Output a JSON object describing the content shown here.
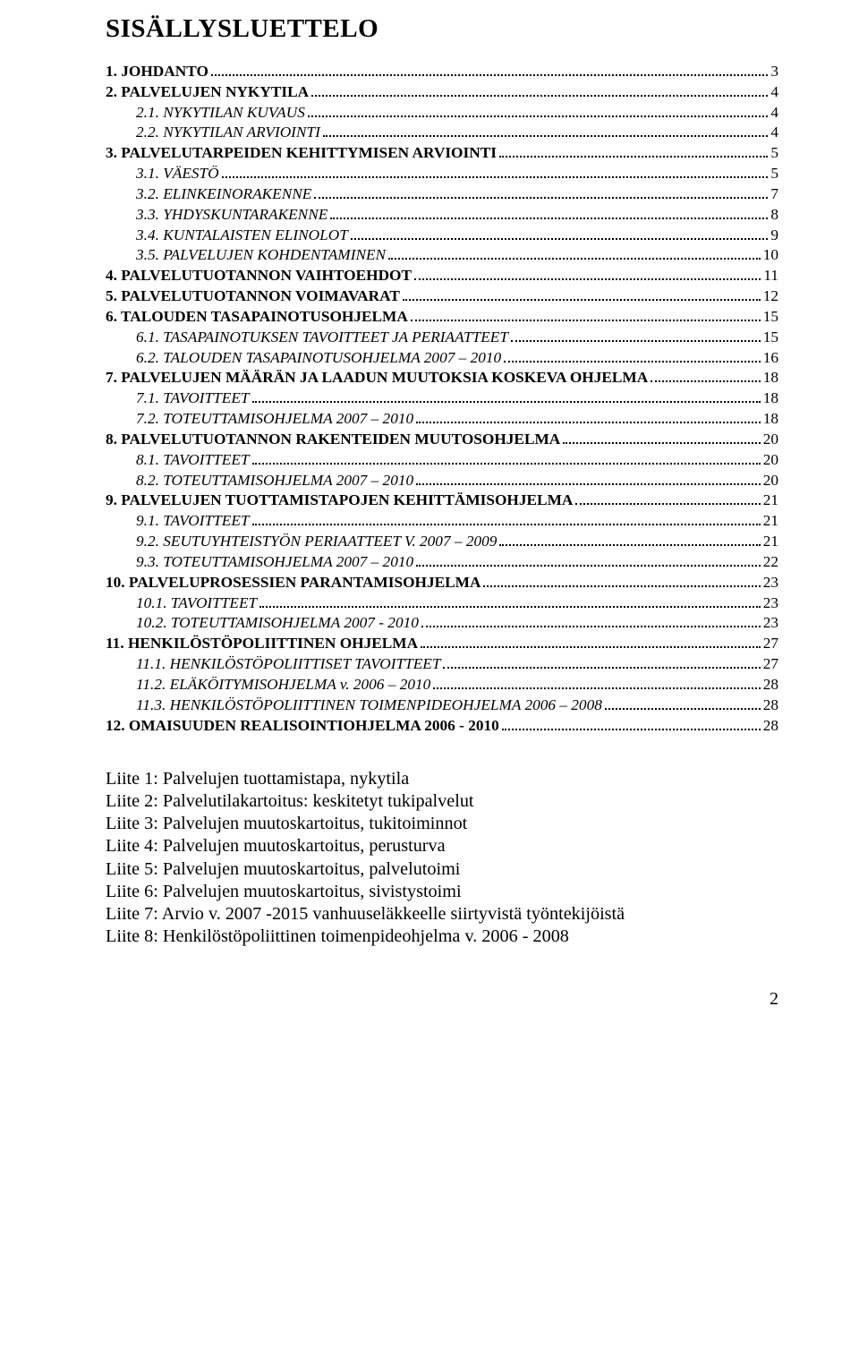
{
  "title": "SISÄLLYSLUETTELO",
  "toc": [
    {
      "lvl": 1,
      "bold": true,
      "label": "1.   JOHDANTO",
      "page": 3
    },
    {
      "lvl": 1,
      "bold": true,
      "label": "2.   PALVELUJEN NYKYTILA",
      "page": 4
    },
    {
      "lvl": 2,
      "italic": true,
      "label": "2.1.   NYKYTILAN KUVAUS",
      "page": 4
    },
    {
      "lvl": 2,
      "italic": true,
      "label": "2.2.   NYKYTILAN ARVIOINTI",
      "page": 4
    },
    {
      "lvl": 1,
      "bold": true,
      "label": "3.   PALVELUTARPEIDEN KEHITTYMISEN ARVIOINTI",
      "page": 5
    },
    {
      "lvl": 2,
      "italic": true,
      "label": "3.1.   VÄESTÖ",
      "page": 5
    },
    {
      "lvl": 2,
      "italic": true,
      "label": "3.2.   ELINKEINORAKENNE",
      "page": 7
    },
    {
      "lvl": 2,
      "italic": true,
      "label": "3.3.   YHDYSKUNTARAKENNE",
      "page": 8
    },
    {
      "lvl": 2,
      "italic": true,
      "label": "3.4.   KUNTALAISTEN ELINOLOT",
      "page": 9
    },
    {
      "lvl": 2,
      "italic": true,
      "label": "3.5.   PALVELUJEN KOHDENTAMINEN",
      "page": 10
    },
    {
      "lvl": 1,
      "bold": true,
      "label": "4.   PALVELUTUOTANNON VAIHTOEHDOT",
      "page": 11
    },
    {
      "lvl": 1,
      "bold": true,
      "label": "5.   PALVELUTUOTANNON VOIMAVARAT",
      "page": 12
    },
    {
      "lvl": 1,
      "bold": true,
      "label": "6.   TALOUDEN TASAPAINOTUSOHJELMA",
      "page": 15
    },
    {
      "lvl": 2,
      "italic": true,
      "label": "6.1.   TASAPAINOTUKSEN TAVOITTEET JA PERIAATTEET",
      "page": 15
    },
    {
      "lvl": 2,
      "italic": true,
      "label": "6.2.   TALOUDEN TASAPAINOTUSOHJELMA 2007 – 2010",
      "page": 16
    },
    {
      "lvl": 1,
      "bold": true,
      "label": "7.   PALVELUJEN MÄÄRÄN JA LAADUN MUUTOKSIA KOSKEVA OHJELMA",
      "page": 18
    },
    {
      "lvl": 2,
      "italic": true,
      "label": "7.1.   TAVOITTEET",
      "page": 18
    },
    {
      "lvl": 2,
      "italic": true,
      "label": "7.2.   TOTEUTTAMISOHJELMA 2007 – 2010",
      "page": 18
    },
    {
      "lvl": 1,
      "bold": true,
      "label": "8.   PALVELUTUOTANNON RAKENTEIDEN MUUTOSOHJELMA",
      "page": 20
    },
    {
      "lvl": 2,
      "italic": true,
      "label": "8.1.   TAVOITTEET",
      "page": 20
    },
    {
      "lvl": 2,
      "italic": true,
      "label": "8.2.   TOTEUTTAMISOHJELMA 2007 – 2010",
      "page": 20
    },
    {
      "lvl": 1,
      "bold": true,
      "label": "9.   PALVELUJEN TUOTTAMISTAPOJEN KEHITTÄMISOHJELMA",
      "page": 21
    },
    {
      "lvl": 2,
      "italic": true,
      "label": "9.1.   TAVOITTEET",
      "page": 21
    },
    {
      "lvl": 2,
      "italic": true,
      "label": "9.2.   SEUTUYHTEISTYÖN PERIAATTEET V. 2007 – 2009",
      "page": 21
    },
    {
      "lvl": 2,
      "italic": true,
      "label": "9.3.   TOTEUTTAMISOHJELMA 2007 – 2010",
      "page": 22
    },
    {
      "lvl": 1,
      "bold": true,
      "label": "10.   PALVELUPROSESSIEN PARANTAMISOHJELMA",
      "page": 23
    },
    {
      "lvl": 2,
      "italic": true,
      "label": "10.1.   TAVOITTEET",
      "page": 23
    },
    {
      "lvl": 2,
      "italic": true,
      "label": "10.2.   TOTEUTTAMISOHJELMA 2007 - 2010",
      "page": 23
    },
    {
      "lvl": 1,
      "bold": true,
      "label": "11.   HENKILÖSTÖPOLIITTINEN OHJELMA",
      "page": 27
    },
    {
      "lvl": 2,
      "italic": true,
      "label": "11.1.   HENKILÖSTÖPOLIITTISET TAVOITTEET",
      "page": 27
    },
    {
      "lvl": 2,
      "italic": true,
      "label": "11.2.   ELÄKÖITYMISOHJELMA v. 2006 – 2010",
      "page": 28
    },
    {
      "lvl": 2,
      "italic": true,
      "label": "11.3.   HENKILÖSTÖPOLIITTINEN TOIMENPIDEOHJELMA 2006 – 2008",
      "page": 28
    },
    {
      "lvl": 1,
      "bold": true,
      "label": "12.   OMAISUUDEN REALISOINTIOHJELMA 2006 - 2010",
      "page": 28
    }
  ],
  "attachments": [
    "Liite 1: Palvelujen tuottamistapa, nykytila",
    "Liite 2: Palvelutilakartoitus: keskitetyt tukipalvelut",
    "Liite 3: Palvelujen muutoskartoitus, tukitoiminnot",
    "Liite 4: Palvelujen muutoskartoitus, perusturva",
    "Liite 5: Palvelujen muutoskartoitus, palvelutoimi",
    "Liite 6: Palvelujen muutoskartoitus, sivistystoimi",
    "Liite 7: Arvio v. 2007 -2015 vanhuuseläkkeelle siirtyvistä työntekijöistä",
    "Liite 8: Henkilöstöpoliittinen toimenpideohjelma v. 2006 - 2008"
  ],
  "pageNumber": "2"
}
